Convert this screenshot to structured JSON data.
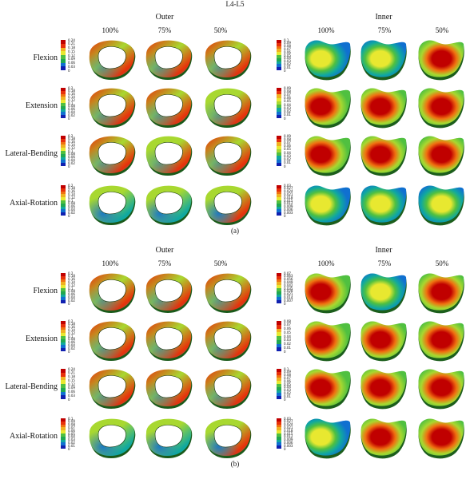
{
  "figure": {
    "title": "L4-L5",
    "panels": [
      {
        "caption": "(a)",
        "groups": [
          {
            "title": "Outer",
            "columns": [
              "100%",
              "75%",
              "50%"
            ]
          },
          {
            "title": "Inner",
            "columns": [
              "100%",
              "75%",
              "50%"
            ]
          }
        ],
        "rows": [
          {
            "label": "Flexion",
            "outer_legend": [
              "0.24",
              "0.21",
              "0.18",
              "0.15",
              "0.12",
              "0.09",
              "0.06",
              "0.03",
              "0"
            ],
            "inner_legend": [
              "0.1",
              "0.09",
              "0.08",
              "0.07",
              "0.06",
              "0.05",
              "0.04",
              "0.03",
              "0.02",
              "0.01",
              "0"
            ]
          },
          {
            "label": "Extension",
            "outer_legend": [
              "0.2",
              "0.18",
              "0.16",
              "0.14",
              "0.12",
              "0.1",
              "0.08",
              "0.06",
              "0.04",
              "0.02",
              "0"
            ],
            "inner_legend": [
              "0.09",
              "0.08",
              "0.07",
              "0.06",
              "0.05",
              "0.04",
              "0.03",
              "0.02",
              "0.01",
              "0"
            ]
          },
          {
            "label": "Lateral-Bending",
            "outer_legend": [
              "0.2",
              "0.18",
              "0.16",
              "0.14",
              "0.12",
              "0.1",
              "0.08",
              "0.06",
              "0.04",
              "0.02",
              "0"
            ],
            "inner_legend": [
              "0.09",
              "0.08",
              "0.07",
              "0.06",
              "0.05",
              "0.04",
              "0.03",
              "0.02",
              "0.01",
              "0"
            ]
          },
          {
            "label": "Axial-Rotation",
            "outer_legend": [
              "0.2",
              "0.18",
              "0.16",
              "0.14",
              "0.12",
              "0.1",
              "0.08",
              "0.06",
              "0.04",
              "0.02",
              "0"
            ],
            "inner_legend": [
              "0.03",
              "0.027",
              "0.024",
              "0.021",
              "0.018",
              "0.015",
              "0.012",
              "0.009",
              "0.006",
              "0.003",
              "0"
            ]
          }
        ]
      },
      {
        "caption": "(b)",
        "groups": [
          {
            "title": "Outer",
            "columns": [
              "100%",
              "75%",
              "50%"
            ]
          },
          {
            "title": "Inner",
            "columns": [
              "100%",
              "75%",
              "50%"
            ]
          }
        ],
        "rows": [
          {
            "label": "Flexion",
            "outer_legend": [
              "0.2",
              "0.18",
              "0.16",
              "0.14",
              "0.12",
              "0.1",
              "0.08",
              "0.06",
              "0.04",
              "0.02",
              "0"
            ],
            "inner_legend": [
              "0.07",
              "0.063",
              "0.056",
              "0.049",
              "0.042",
              "0.035",
              "0.028",
              "0.021",
              "0.014",
              "0.007",
              "0"
            ]
          },
          {
            "label": "Extension",
            "outer_legend": [
              "0.2",
              "0.18",
              "0.16",
              "0.14",
              "0.12",
              "0.1",
              "0.08",
              "0.06",
              "0.04",
              "0.02",
              "0"
            ],
            "inner_legend": [
              "0.08",
              "0.07",
              "0.06",
              "0.05",
              "0.04",
              "0.03",
              "0.02",
              "0.01",
              "0"
            ]
          },
          {
            "label": "Lateral-Bending",
            "outer_legend": [
              "0.24",
              "0.21",
              "0.18",
              "0.15",
              "0.12",
              "0.09",
              "0.06",
              "0.03",
              "0"
            ],
            "inner_legend": [
              "0.1",
              "0.09",
              "0.08",
              "0.07",
              "0.06",
              "0.05",
              "0.04",
              "0.03",
              "0.02",
              "0.01",
              "0"
            ]
          },
          {
            "label": "Axial-Rotation",
            "outer_legend": [
              "0.1",
              "0.09",
              "0.08",
              "0.07",
              "0.06",
              "0.05",
              "0.04",
              "0.03",
              "0.02",
              "0.01",
              "0"
            ],
            "inner_legend": [
              "0.03",
              "0.027",
              "0.024",
              "0.021",
              "0.018",
              "0.015",
              "0.012",
              "0.009",
              "0.006",
              "0.003",
              "0"
            ]
          }
        ]
      }
    ],
    "colormap": [
      "#c00000",
      "#e8300a",
      "#f07010",
      "#f0b020",
      "#e8e830",
      "#a8d830",
      "#50c040",
      "#20a850",
      "#10a8a0",
      "#1070d0",
      "#1020b0"
    ]
  }
}
